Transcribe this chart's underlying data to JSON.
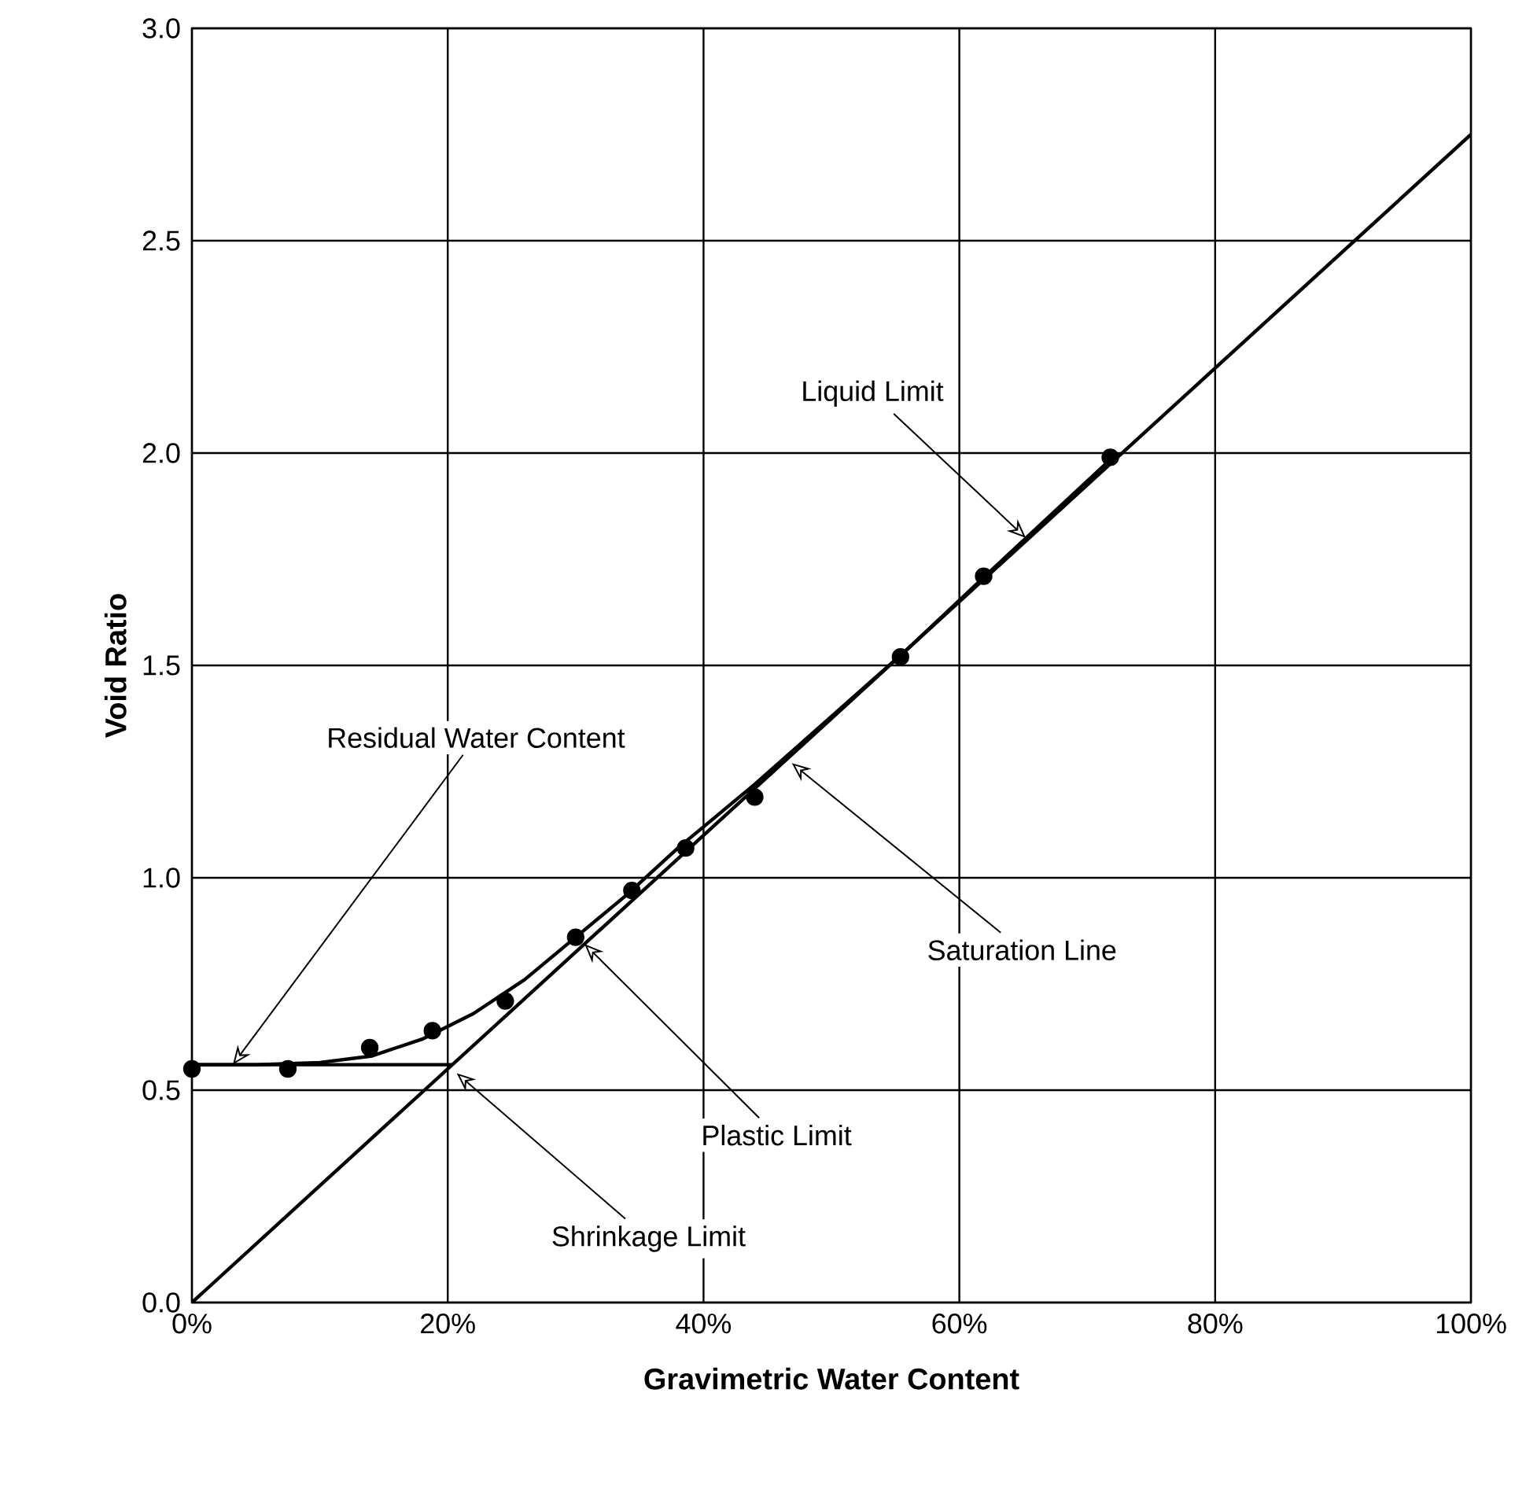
{
  "chart_data": {
    "type": "line",
    "xlabel": "Gravimetric Water Content",
    "ylabel": "Void Ratio",
    "xlim": [
      0,
      100
    ],
    "ylim": [
      0,
      3.0
    ],
    "xticks": [
      {
        "value": 0,
        "label": "0%"
      },
      {
        "value": 20,
        "label": "20%"
      },
      {
        "value": 40,
        "label": "40%"
      },
      {
        "value": 60,
        "label": "60%"
      },
      {
        "value": 80,
        "label": "80%"
      },
      {
        "value": 100,
        "label": "100%"
      }
    ],
    "yticks": [
      {
        "value": 0,
        "label": "0.0"
      },
      {
        "value": 0.5,
        "label": "0.5"
      },
      {
        "value": 1.0,
        "label": "1.0"
      },
      {
        "value": 1.5,
        "label": "1.5"
      },
      {
        "value": 2.0,
        "label": "2.0"
      },
      {
        "value": 2.5,
        "label": "2.5"
      },
      {
        "value": 3.0,
        "label": "3.0"
      }
    ],
    "grid": true,
    "series": [
      {
        "type": "scatter",
        "marker": "circle",
        "color": "#000000",
        "x": [
          0,
          7.5,
          13.9,
          18.8,
          24.5,
          30,
          34.4,
          38.6,
          44,
          55.4,
          61.9,
          71.8
        ],
        "values": [
          0.55,
          0.55,
          0.6,
          0.64,
          0.71,
          0.86,
          0.97,
          1.07,
          1.19,
          1.52,
          1.71,
          1.99
        ]
      },
      {
        "marker": "none",
        "line_style": "solid",
        "color": "#000000",
        "x": [
          0,
          5,
          10,
          14,
          18,
          22,
          26,
          30,
          34,
          38,
          44,
          50,
          56,
          62,
          72
        ],
        "values": [
          0.56,
          0.56,
          0.565,
          0.58,
          0.62,
          0.68,
          0.76,
          0.86,
          0.96,
          1.07,
          1.22,
          1.38,
          1.54,
          1.71,
          1.99
        ]
      },
      {
        "marker": "none",
        "line_style": "solid",
        "color": "#000000",
        "x": [
          0,
          100
        ],
        "values": [
          0,
          2.75
        ]
      },
      {
        "marker": "none",
        "line_style": "solid",
        "color": "#000000",
        "x": [
          0,
          20.4
        ],
        "values": [
          0.56,
          0.56
        ]
      }
    ],
    "annotations": [
      {
        "text": "Liquid Limit",
        "x": 65.2,
        "y": 1.8
      },
      {
        "text": "Residual Water Content",
        "x": 3.2,
        "y": 0.56
      },
      {
        "text": "Saturation Line",
        "x": 46.9,
        "y": 1.27
      },
      {
        "text": "Plastic Limit",
        "x": 30.7,
        "y": 0.844
      },
      {
        "text": "Shrinkage Limit",
        "x": 20.7,
        "y": 0.54
      }
    ]
  }
}
